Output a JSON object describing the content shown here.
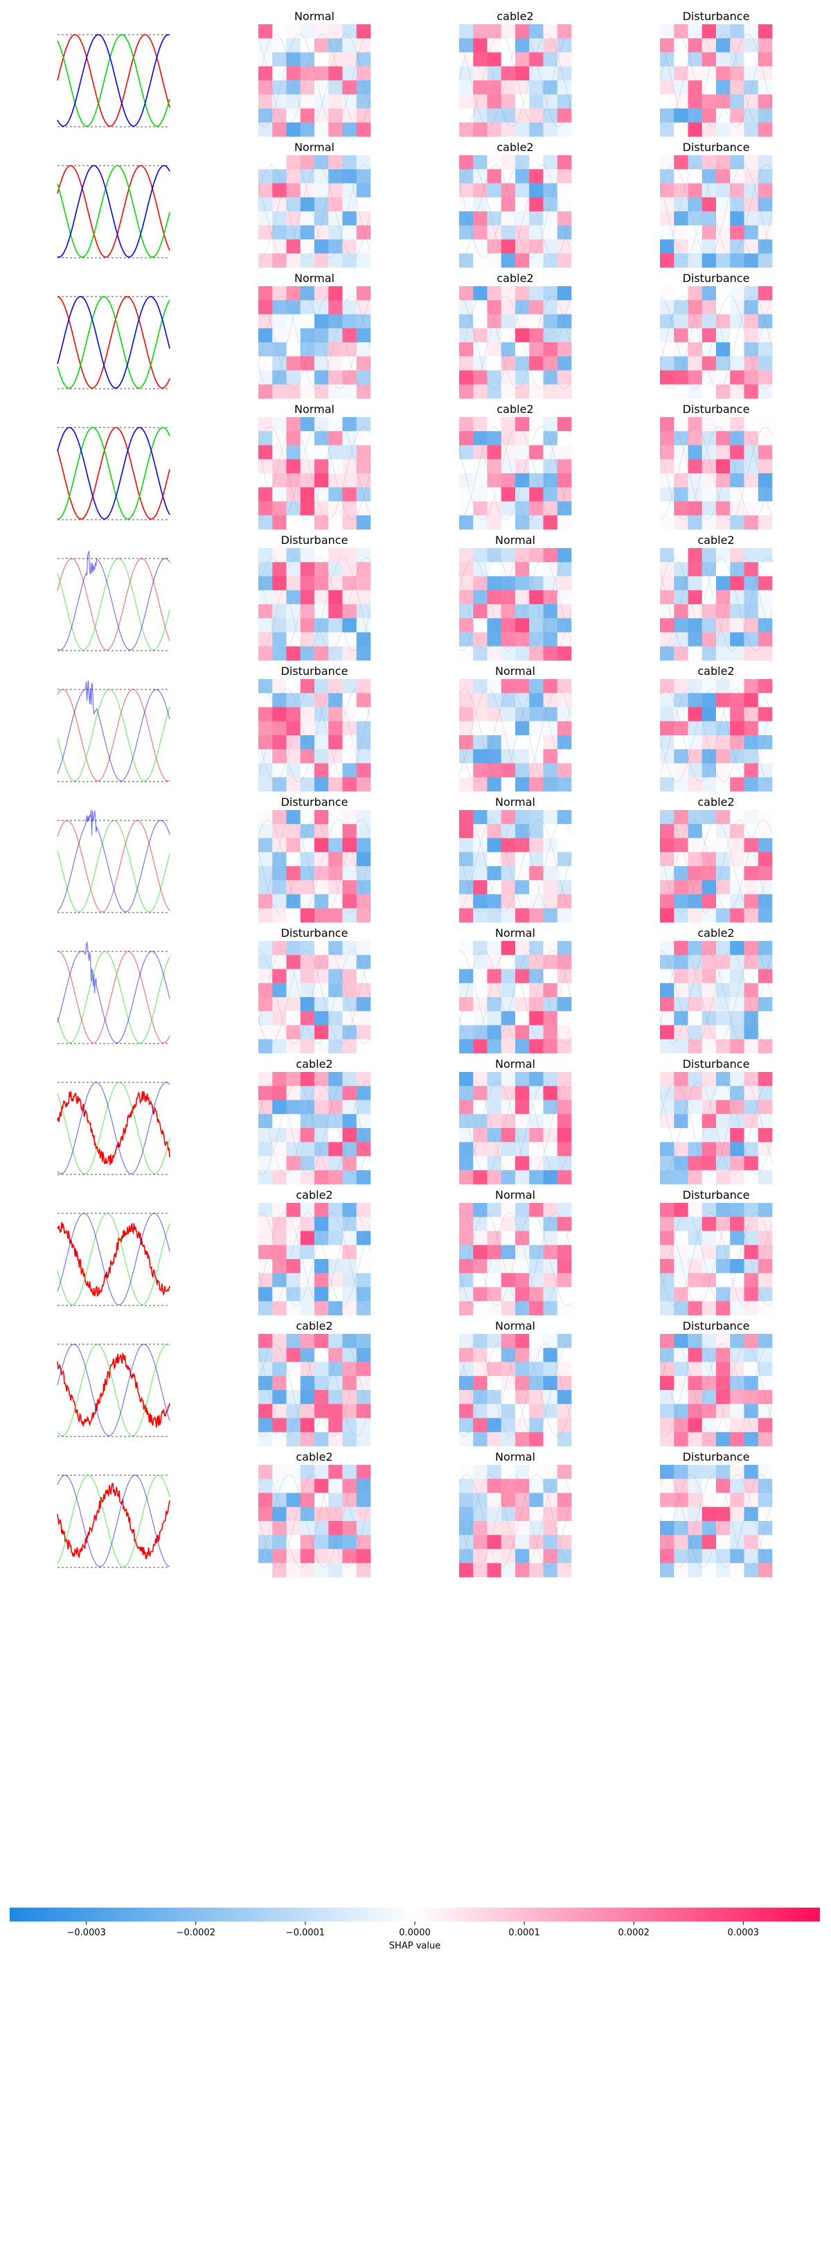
{
  "figure": {
    "rows": [
      {
        "titles": [
          "Normal",
          "cable2",
          "Disturbance"
        ],
        "signal": "clean",
        "phase": 0.0,
        "heavy": false
      },
      {
        "titles": [
          "Normal",
          "cable2",
          "Disturbance"
        ],
        "signal": "clean",
        "phase": 0.4,
        "heavy": false
      },
      {
        "titles": [
          "Normal",
          "cable2",
          "Disturbance"
        ],
        "signal": "clean",
        "phase": 1.6,
        "heavy": false
      },
      {
        "titles": [
          "Normal",
          "cable2",
          "Disturbance"
        ],
        "signal": "clean",
        "phase": 2.6,
        "heavy": false
      },
      {
        "titles": [
          "Disturbance",
          "Normal",
          "cable2"
        ],
        "signal": "transient",
        "phase": 0.3,
        "heavy": false
      },
      {
        "titles": [
          "Disturbance",
          "Normal",
          "cable2"
        ],
        "signal": "transient",
        "phase": 1.1,
        "heavy": false
      },
      {
        "titles": [
          "Disturbance",
          "Normal",
          "cable2"
        ],
        "signal": "transient",
        "phase": 0.7,
        "heavy": false
      },
      {
        "titles": [
          "Disturbance",
          "Normal",
          "cable2"
        ],
        "signal": "transient",
        "phase": 1.5,
        "heavy": false
      },
      {
        "titles": [
          "cable2",
          "Normal",
          "Disturbance"
        ],
        "signal": "noisy",
        "phase": 0.2,
        "heavy": false
      },
      {
        "titles": [
          "cable2",
          "Normal",
          "Disturbance"
        ],
        "signal": "noisy",
        "phase": 1.3,
        "heavy": false
      },
      {
        "titles": [
          "cable2",
          "Normal",
          "Disturbance"
        ],
        "signal": "noisy",
        "phase": 2.2,
        "heavy": false
      },
      {
        "titles": [
          "cable2",
          "Normal",
          "Disturbance"
        ],
        "signal": "noisy",
        "phase": 3.0,
        "heavy": false
      }
    ]
  },
  "colorbar": {
    "label": "SHAP value",
    "ticks": [
      "−0.0003",
      "−0.0002",
      "−0.0001",
      "0.0000",
      "0.0001",
      "0.0002",
      "0.0003"
    ],
    "tick_values": [
      -0.0003,
      -0.0002,
      -0.0001,
      0.0,
      0.0001,
      0.0002,
      0.0003
    ],
    "range": [
      -0.00037,
      0.00037
    ],
    "colors": {
      "negative": "#1e88e5",
      "neutral": "#ffffff",
      "positive": "#ff0d57"
    }
  },
  "signal_colors": {
    "phase_a": "#ff0000",
    "phase_b": "#00dd00",
    "phase_c": "#0000ff",
    "guide": "#555555"
  },
  "chart_data": {
    "type": "heatmap",
    "title": "",
    "rows": 12,
    "columns_per_row": 3,
    "grid": [
      8,
      8
    ],
    "xlabel": "SHAP value",
    "legend": "bottom colorbar",
    "panel_titles": [
      [
        "Normal",
        "cable2",
        "Disturbance"
      ],
      [
        "Normal",
        "cable2",
        "Disturbance"
      ],
      [
        "Normal",
        "cable2",
        "Disturbance"
      ],
      [
        "Normal",
        "cable2",
        "Disturbance"
      ],
      [
        "Disturbance",
        "Normal",
        "cable2"
      ],
      [
        "Disturbance",
        "Normal",
        "cable2"
      ],
      [
        "Disturbance",
        "Normal",
        "cable2"
      ],
      [
        "Disturbance",
        "Normal",
        "cable2"
      ],
      [
        "cable2",
        "Normal",
        "Disturbance"
      ],
      [
        "cable2",
        "Normal",
        "Disturbance"
      ],
      [
        "cable2",
        "Normal",
        "Disturbance"
      ],
      [
        "cable2",
        "Normal",
        "Disturbance"
      ]
    ],
    "value_range": [
      -0.00037,
      0.00037
    ],
    "colorbar_ticks": [
      -0.0003,
      -0.0002,
      -0.0001,
      0.0,
      0.0001,
      0.0002,
      0.0003
    ]
  }
}
